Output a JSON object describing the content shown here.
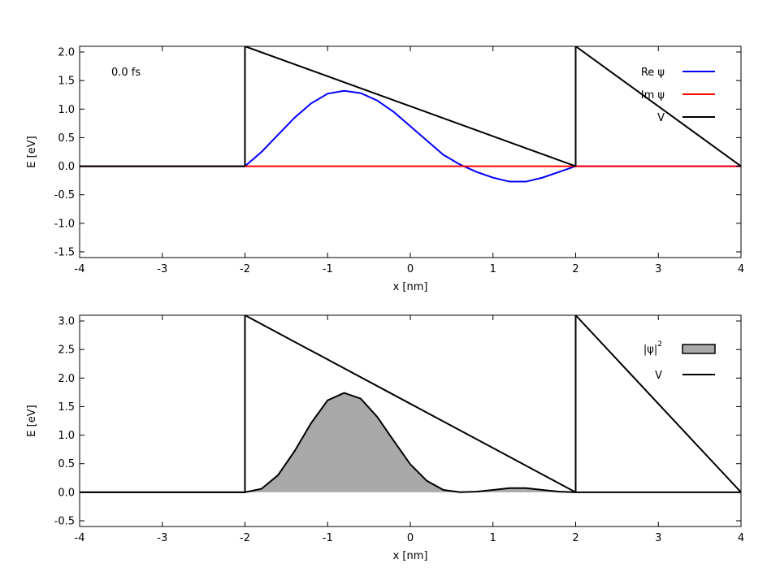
{
  "chart_data": [
    {
      "type": "line",
      "annotation": "0.0 fs",
      "xlabel": "x [nm]",
      "ylabel": "E [eV]",
      "xlim": [
        -4,
        4
      ],
      "ylim": [
        -1.6,
        2.1
      ],
      "xticks": [
        -4,
        -3,
        -2,
        -1,
        0,
        1,
        2,
        3,
        4
      ],
      "yticks": [
        -1.5,
        -1.0,
        -0.5,
        0.0,
        0.5,
        1.0,
        1.5,
        2.0
      ],
      "grid": false,
      "legend_position": "top-right",
      "series": [
        {
          "name": "Re ψ",
          "color": "#0000ff",
          "x": [
            -4,
            -2.0,
            -1.8,
            -1.6,
            -1.4,
            -1.2,
            -1.0,
            -0.8,
            -0.6,
            -0.4,
            -0.2,
            0.0,
            0.2,
            0.4,
            0.6,
            0.8,
            1.0,
            1.2,
            1.4,
            1.6,
            1.8,
            2.0,
            4
          ],
          "y": [
            0,
            0,
            0.25,
            0.55,
            0.85,
            1.1,
            1.27,
            1.32,
            1.28,
            1.15,
            0.95,
            0.7,
            0.45,
            0.2,
            0.03,
            -0.1,
            -0.2,
            -0.27,
            -0.27,
            -0.2,
            -0.1,
            0,
            0
          ]
        },
        {
          "name": "Im ψ",
          "color": "#ff0000",
          "x": [
            -4,
            4
          ],
          "y": [
            0,
            0
          ]
        },
        {
          "name": "V",
          "color": "#000000",
          "x": [
            -4,
            -2,
            -2,
            2,
            2,
            4
          ],
          "y": [
            0,
            0,
            2.1,
            0,
            2.1,
            0
          ]
        }
      ]
    },
    {
      "type": "area",
      "xlabel": "x [nm]",
      "ylabel": "E [eV]",
      "xlim": [
        -4,
        4
      ],
      "ylim": [
        -0.6,
        3.1
      ],
      "xticks": [
        -4,
        -3,
        -2,
        -1,
        0,
        1,
        2,
        3,
        4
      ],
      "yticks": [
        -0.5,
        0.0,
        0.5,
        1.0,
        1.5,
        2.0,
        2.5,
        3.0
      ],
      "grid": false,
      "legend_position": "top-right",
      "series": [
        {
          "name": "|ψ|²",
          "color": "#a9a9a9",
          "x": [
            -4,
            -2.0,
            -1.8,
            -1.6,
            -1.4,
            -1.2,
            -1.0,
            -0.8,
            -0.6,
            -0.4,
            -0.2,
            0.0,
            0.2,
            0.4,
            0.6,
            0.8,
            1.0,
            1.2,
            1.4,
            1.6,
            1.8,
            2.0,
            4
          ],
          "y": [
            0,
            0,
            0.06,
            0.3,
            0.72,
            1.21,
            1.61,
            1.74,
            1.64,
            1.32,
            0.9,
            0.49,
            0.2,
            0.04,
            0.001,
            0.01,
            0.04,
            0.073,
            0.073,
            0.04,
            0.01,
            0,
            0
          ]
        },
        {
          "name": "V",
          "color": "#000000",
          "x": [
            -4,
            -2,
            -2,
            2,
            2,
            4
          ],
          "y": [
            0,
            0,
            3.1,
            0,
            3.1,
            0
          ]
        }
      ]
    }
  ],
  "legend_labels": {
    "re_psi": "Re ψ",
    "im_psi": "Im ψ",
    "v": "V",
    "psi_abs": "|ψ|",
    "psi_sup": "2"
  }
}
